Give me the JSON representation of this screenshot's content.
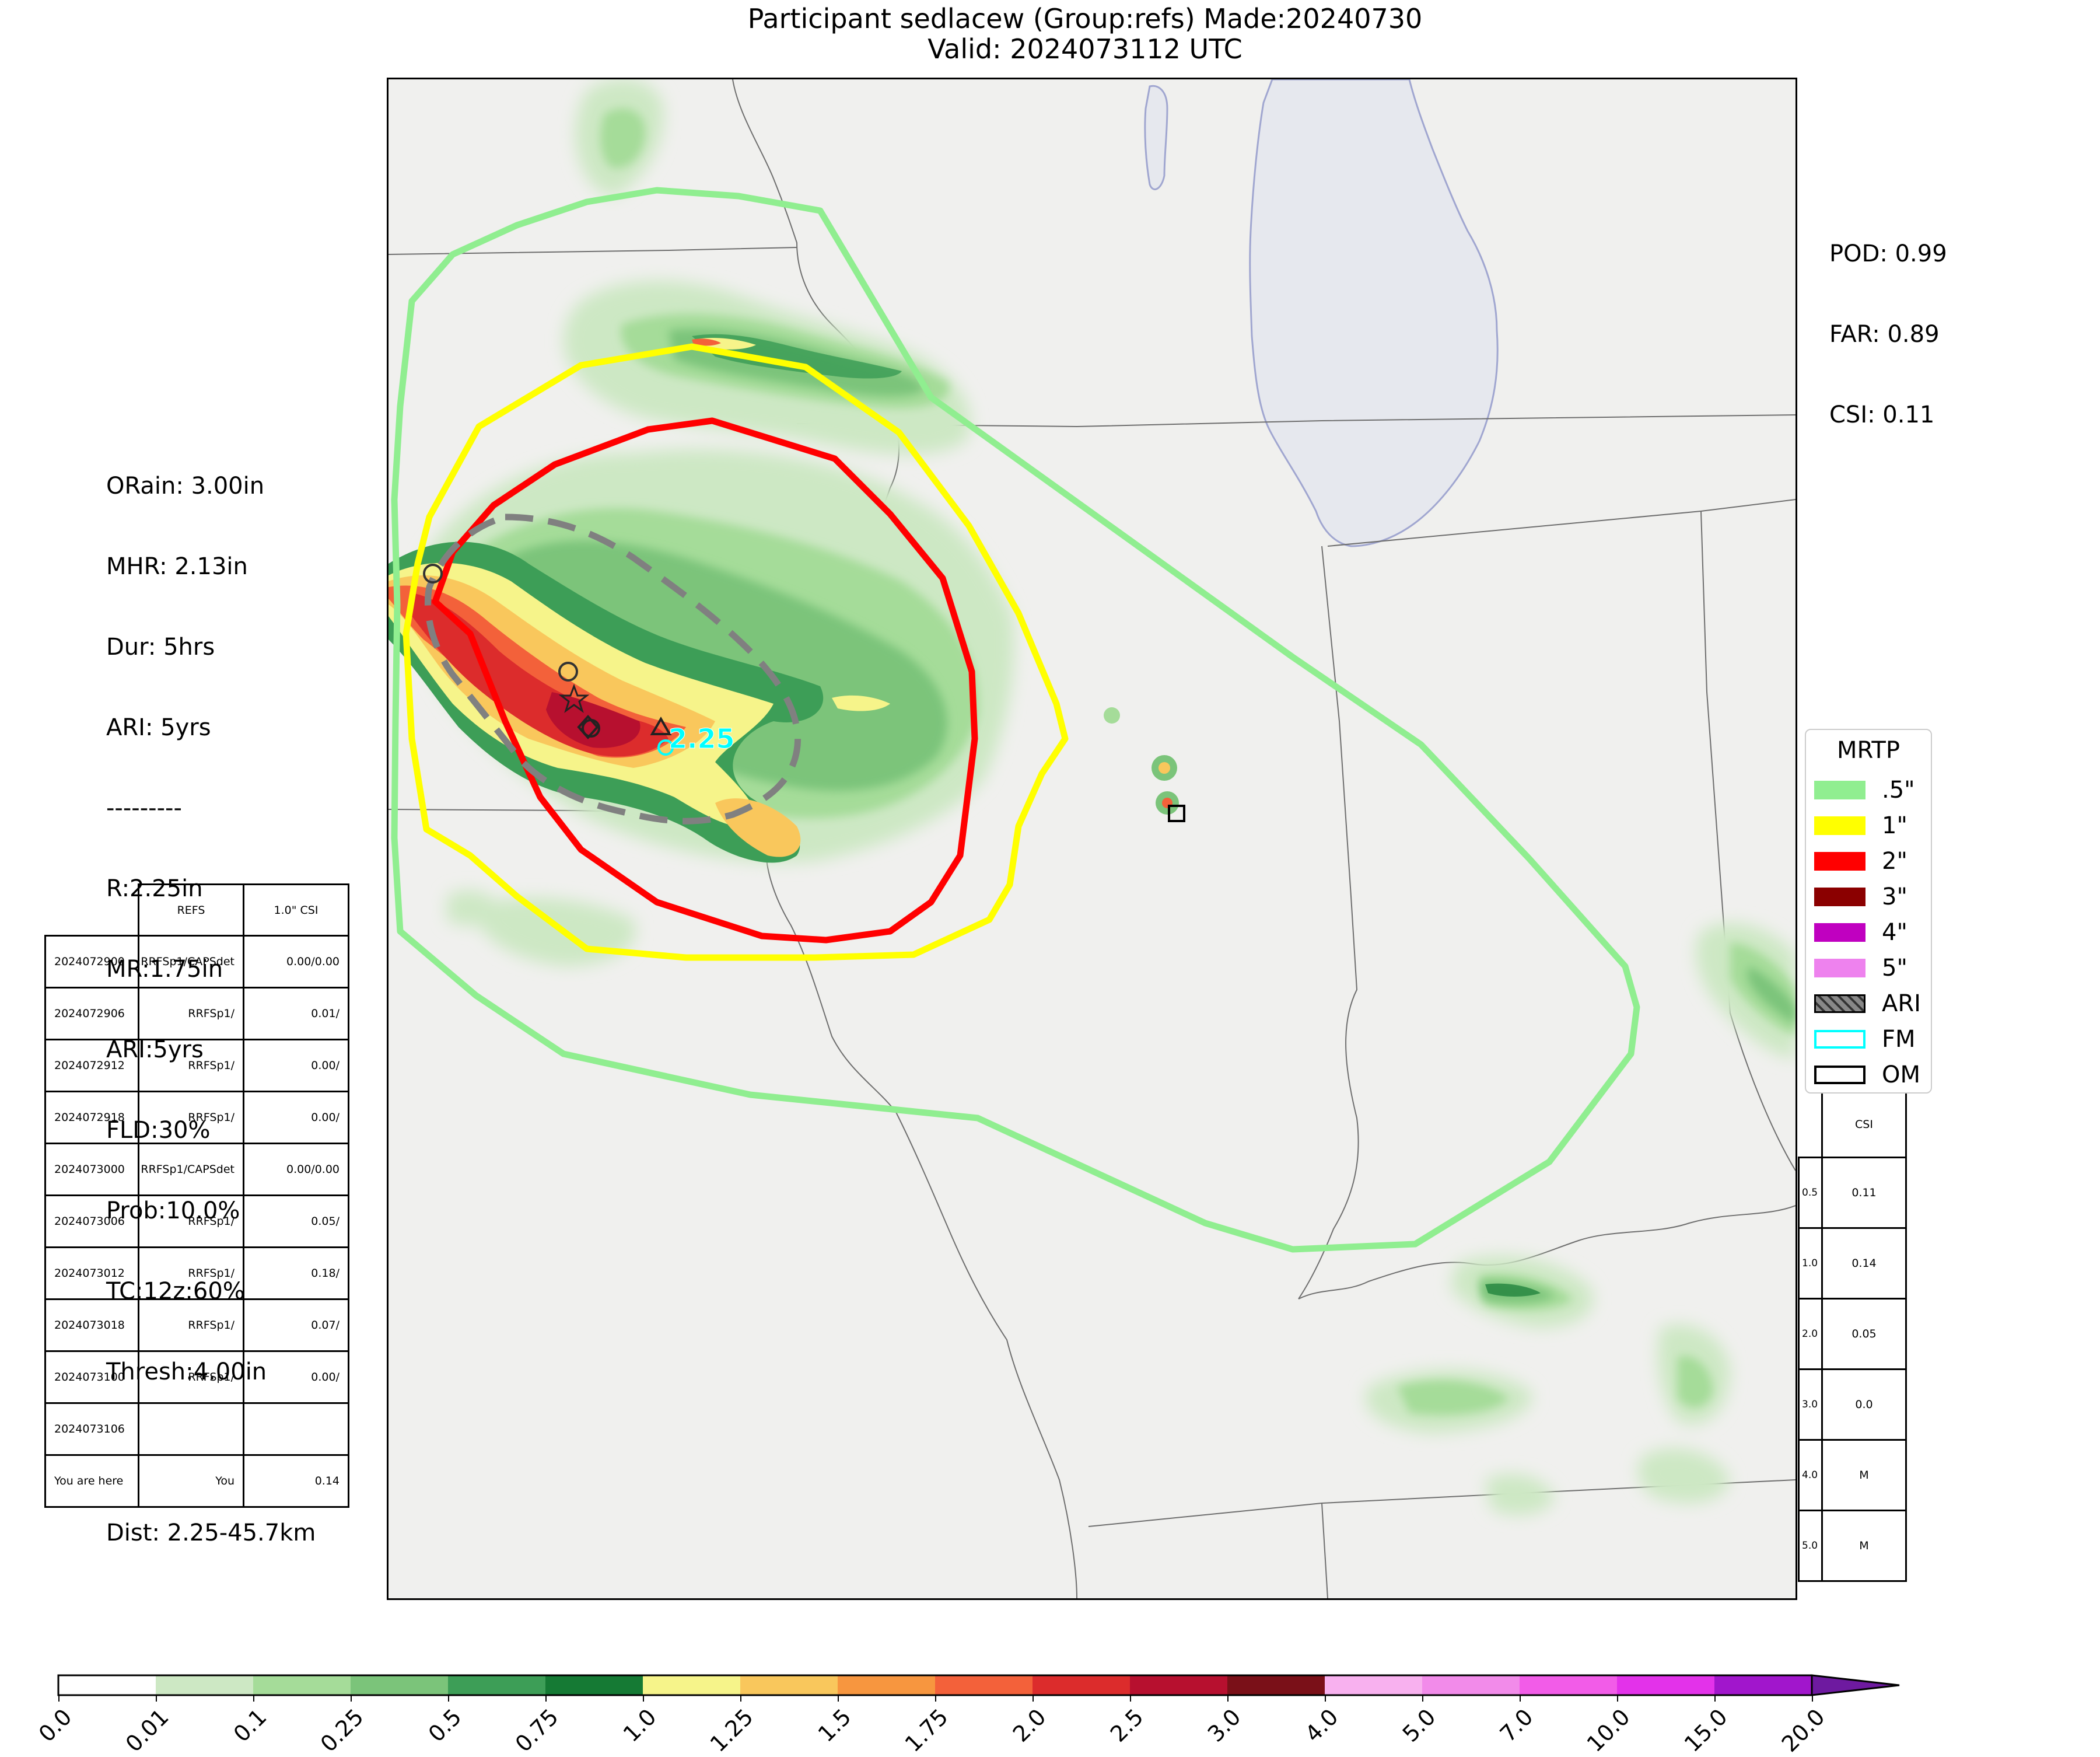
{
  "title": {
    "line1": "Participant sedlacew (Group:refs) Made:20240730",
    "line2": "Valid: 2024073112 UTC"
  },
  "scores": {
    "pod": "POD: 0.99",
    "far": "FAR: 0.89",
    "csi": "CSI: 0.11"
  },
  "info": {
    "orain": "ORain: 3.00in",
    "mhr": "MHR: 2.13in",
    "dur": "Dur: 5hrs",
    "ari": "ARI: 5yrs",
    "sep": "---------",
    "r": "R:2.25in",
    "mr": "MR:1.75in",
    "ari2": "ARI:5yrs",
    "fld": "FLD:30%",
    "prob": "Prob:10.0%",
    "tc": "TC:12z:60%",
    "thresh": "Thresh:4.00in",
    "dist": "Dist: 2.25-45.7km"
  },
  "map_label": "2.25",
  "colors": {
    "contour_05": "#90ee90",
    "contour_1": "#ffff00",
    "contour_2": "#ff0000",
    "contour_3": "#8b0000",
    "contour_4": "#c000c0",
    "contour_5": "#ee82ee",
    "ari_fill": "#888888",
    "fm_edge": "#00ffff",
    "om_edge": "#000000",
    "lake": "#e6e8ee",
    "land": "#f0f0ee"
  },
  "legend": {
    "title": "MRTP",
    "items": [
      {
        "label": ".5\"",
        "kind": "fill",
        "color": "#90ee90"
      },
      {
        "label": "1\"",
        "kind": "fill",
        "color": "#ffff00"
      },
      {
        "label": "2\"",
        "kind": "fill",
        "color": "#ff0000"
      },
      {
        "label": "3\"",
        "kind": "fill",
        "color": "#8b0000"
      },
      {
        "label": "4\"",
        "kind": "fill",
        "color": "#c000c0"
      },
      {
        "label": "5\"",
        "kind": "fill",
        "color": "#ee82ee"
      },
      {
        "label": "ARI",
        "kind": "hatch",
        "color": "#888888"
      },
      {
        "label": "FM",
        "kind": "outline",
        "color": "#00ffff"
      },
      {
        "label": "OM",
        "kind": "outline",
        "color": "#000000"
      }
    ]
  },
  "left_table": {
    "headers": [
      "",
      "REFS",
      "1.0\" CSI"
    ],
    "rows": [
      [
        "2024072900",
        "RRFSp1/CAPSdet",
        "0.00/0.00"
      ],
      [
        "2024072906",
        "RRFSp1/",
        "0.01/"
      ],
      [
        "2024072912",
        "RRFSp1/",
        "0.00/"
      ],
      [
        "2024072918",
        "RRFSp1/",
        "0.00/"
      ],
      [
        "2024073000",
        "RRFSp1/CAPSdet",
        "0.00/0.00"
      ],
      [
        "2024073006",
        "RRFSp1/",
        "0.05/"
      ],
      [
        "2024073012",
        "RRFSp1/",
        "0.18/"
      ],
      [
        "2024073018",
        "RRFSp1/",
        "0.07/"
      ],
      [
        "2024073100",
        "RRFSp1/",
        "0.00/"
      ],
      [
        "2024073106",
        "",
        ""
      ],
      [
        "You are here",
        "You",
        "0.14"
      ]
    ]
  },
  "right_table": {
    "header": "CSI",
    "rows": [
      [
        "0.5",
        "0.11"
      ],
      [
        "1.0",
        "0.14"
      ],
      [
        "2.0",
        "0.05"
      ],
      [
        "3.0",
        "0.0"
      ],
      [
        "4.0",
        "M"
      ],
      [
        "5.0",
        "M"
      ]
    ]
  },
  "colorbar": {
    "ticks": [
      "0.0",
      "0.01",
      "0.1",
      "0.25",
      "0.5",
      "0.75",
      "1.0",
      "1.25",
      "1.5",
      "1.75",
      "2.0",
      "2.5",
      "3.0",
      "4.0",
      "5.0",
      "7.0",
      "10.0",
      "15.0",
      "20.0"
    ],
    "colors": [
      "#ffffff",
      "#cde8c4",
      "#a5dc99",
      "#7bc47a",
      "#3d9e57",
      "#157a34",
      "#f6f48a",
      "#f9c75c",
      "#f7963f",
      "#f3613a",
      "#dc2c2c",
      "#b7102f",
      "#7a1018",
      "#f8b1ef",
      "#f28bea",
      "#f25ce8",
      "#e332ea",
      "#a116cc"
    ],
    "extend_color": "#6e1aa0"
  }
}
